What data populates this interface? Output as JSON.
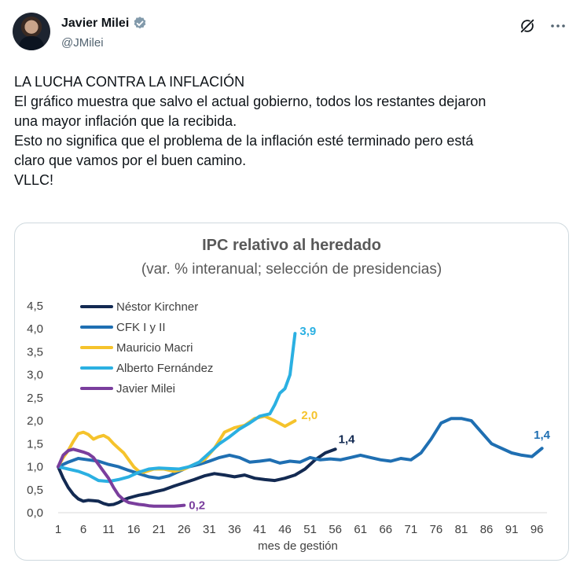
{
  "author": {
    "display_name": "Javier Milei",
    "handle": "@JMilei",
    "verified_icon": "verified-badge-icon",
    "verified_color": "#829aab"
  },
  "actions": {
    "grok_icon": "grok-icon",
    "more_icon": "more-dots-icon"
  },
  "tweet": {
    "lines": [
      "LA LUCHA CONTRA LA INFLACIÓN",
      "El gráfico muestra que salvo el actual gobierno, todos los restantes dejaron",
      "una mayor inflación que la recibida.",
      "Esto no significa que el problema de la inflación esté terminado pero está",
      "claro que vamos por el buen camino.",
      "VLLC!"
    ]
  },
  "chart_data": {
    "type": "line",
    "title": "IPC relativo al heredado",
    "subtitle": "(var. % interanual; selección de presidencias)",
    "xlabel": "mes de gestión",
    "ylabel": "",
    "xlim": [
      1,
      98
    ],
    "ylim": [
      0,
      4.5
    ],
    "xticks": [
      "1",
      "6",
      "11",
      "16",
      "21",
      "26",
      "31",
      "36",
      "41",
      "46",
      "51",
      "56",
      "61",
      "66",
      "71",
      "76",
      "81",
      "86",
      "91",
      "96"
    ],
    "yticks": [
      "0,0",
      "0,5",
      "1,0",
      "1,5",
      "2,0",
      "2,5",
      "3,0",
      "3,5",
      "4,0",
      "4,5"
    ],
    "legend_position": "top-left",
    "series": [
      {
        "name": "Néstor Kirchner",
        "color": "#132a52",
        "x": [
          1,
          2,
          3,
          4,
          5,
          6,
          7,
          8,
          9,
          10,
          11,
          12,
          13,
          14,
          15,
          16,
          17,
          18,
          19,
          20,
          22,
          24,
          26,
          28,
          30,
          32,
          34,
          36,
          38,
          40,
          42,
          44,
          46,
          48,
          50,
          52,
          54,
          56
        ],
        "y": [
          1.0,
          0.75,
          0.55,
          0.4,
          0.3,
          0.25,
          0.27,
          0.26,
          0.25,
          0.2,
          0.17,
          0.18,
          0.22,
          0.28,
          0.32,
          0.35,
          0.38,
          0.4,
          0.42,
          0.45,
          0.5,
          0.58,
          0.65,
          0.72,
          0.8,
          0.85,
          0.82,
          0.78,
          0.82,
          0.75,
          0.72,
          0.7,
          0.75,
          0.82,
          0.95,
          1.15,
          1.3,
          1.38
        ],
        "end_label": "1,4"
      },
      {
        "name": "CFK I y II",
        "color": "#1f6fb2",
        "x": [
          1,
          3,
          5,
          7,
          9,
          11,
          13,
          15,
          17,
          19,
          21,
          23,
          25,
          27,
          29,
          31,
          33,
          35,
          37,
          39,
          41,
          43,
          45,
          47,
          49,
          51,
          53,
          55,
          57,
          59,
          61,
          63,
          65,
          67,
          69,
          71,
          73,
          75,
          77,
          79,
          81,
          83,
          85,
          87,
          89,
          91,
          93,
          95,
          97
        ],
        "y": [
          1.0,
          1.1,
          1.18,
          1.15,
          1.12,
          1.05,
          1.0,
          0.92,
          0.85,
          0.78,
          0.75,
          0.8,
          0.9,
          1.0,
          1.05,
          1.12,
          1.2,
          1.25,
          1.2,
          1.1,
          1.12,
          1.15,
          1.08,
          1.12,
          1.1,
          1.2,
          1.15,
          1.17,
          1.15,
          1.2,
          1.25,
          1.2,
          1.15,
          1.12,
          1.18,
          1.15,
          1.3,
          1.6,
          1.95,
          2.05,
          2.05,
          2.0,
          1.75,
          1.5,
          1.4,
          1.3,
          1.25,
          1.22,
          1.4
        ],
        "end_label": "1,4"
      },
      {
        "name": "Mauricio Macri",
        "color": "#f5c32c",
        "x": [
          1,
          2,
          3,
          4,
          5,
          6,
          7,
          8,
          9,
          10,
          11,
          12,
          13,
          14,
          15,
          16,
          17,
          18,
          20,
          22,
          24,
          26,
          28,
          30,
          32,
          34,
          36,
          38,
          40,
          42,
          44,
          46,
          48
        ],
        "y": [
          1.0,
          1.2,
          1.35,
          1.55,
          1.72,
          1.75,
          1.7,
          1.6,
          1.65,
          1.68,
          1.62,
          1.5,
          1.4,
          1.3,
          1.15,
          1.0,
          0.9,
          0.88,
          0.95,
          0.95,
          0.9,
          0.95,
          1.05,
          1.15,
          1.4,
          1.75,
          1.85,
          1.9,
          2.05,
          2.1,
          2.0,
          1.88,
          2.0
        ],
        "end_label": "2,0"
      },
      {
        "name": "Alberto Fernández",
        "color": "#2bb0e2",
        "x": [
          1,
          3,
          5,
          7,
          9,
          11,
          13,
          15,
          17,
          19,
          21,
          23,
          25,
          27,
          29,
          31,
          33,
          35,
          37,
          39,
          41,
          43,
          44,
          45,
          46,
          47,
          48
        ],
        "y": [
          1.0,
          0.95,
          0.9,
          0.82,
          0.7,
          0.68,
          0.72,
          0.78,
          0.88,
          0.95,
          0.97,
          0.96,
          0.95,
          1.0,
          1.1,
          1.3,
          1.5,
          1.65,
          1.82,
          1.95,
          2.1,
          2.15,
          2.35,
          2.6,
          2.7,
          3.0,
          3.9
        ],
        "end_label": "3,9"
      },
      {
        "name": "Javier Milei",
        "color": "#7a3e9d",
        "x": [
          1,
          2,
          3,
          4,
          5,
          6,
          7,
          8,
          9,
          10,
          11,
          12,
          13,
          14,
          15,
          16,
          17,
          18,
          19,
          20,
          21,
          22,
          23,
          24,
          25,
          26
        ],
        "y": [
          1.0,
          1.25,
          1.35,
          1.38,
          1.35,
          1.32,
          1.28,
          1.2,
          1.05,
          0.9,
          0.75,
          0.55,
          0.38,
          0.28,
          0.22,
          0.2,
          0.18,
          0.17,
          0.15,
          0.14,
          0.14,
          0.14,
          0.14,
          0.14,
          0.15,
          0.16
        ],
        "end_label": "0,2"
      }
    ]
  }
}
